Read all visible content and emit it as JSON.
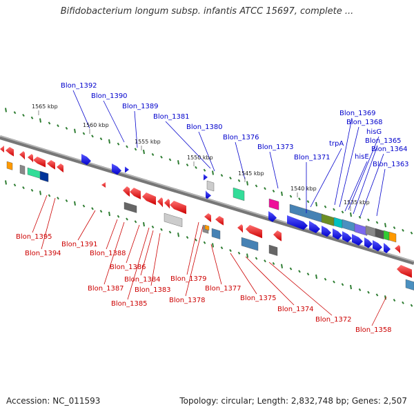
{
  "title": "Bifidobacterium longum subsp. infantis ATCC 15697, complete ...",
  "footer": {
    "accession": "Accession: NC_011593",
    "info": "Topology: circular; Length: 2,832,748 bp; Genes: 2,507"
  },
  "colors": {
    "forward_label": "#0000cc",
    "reverse_label": "#cc0000",
    "backbone": "#808080",
    "tick": "#2e7d32"
  },
  "kbp_ticks": [
    "1565 kbp",
    "1560 kbp",
    "1555 kbp",
    "1550 kbp",
    "1545 kbp",
    "1540 kbp",
    "1535 kbp"
  ],
  "forward_labels": [
    "Blon_1392",
    "Blon_1390",
    "Blon_1389",
    "Blon_1381",
    "Blon_1380",
    "Blon_1376",
    "Blon_1373",
    "Blon_1371",
    "trpA",
    "Blon_1369",
    "Blon_1368",
    "hisG",
    "hisE",
    "Blon_1365",
    "Blon_1364",
    "Blon_1363"
  ],
  "reverse_labels": [
    "Blon_1395",
    "Blon_1394",
    "Blon_1391",
    "Blon_1388",
    "Blon_1387",
    "Blon_1386",
    "Blon_1385",
    "Blon_1384",
    "Blon_1383",
    "Blon_1379",
    "Blon_1378",
    "Blon_1377",
    "Blon_1375",
    "Blon_1374",
    "Blon_1372",
    "Blon_1358"
  ]
}
